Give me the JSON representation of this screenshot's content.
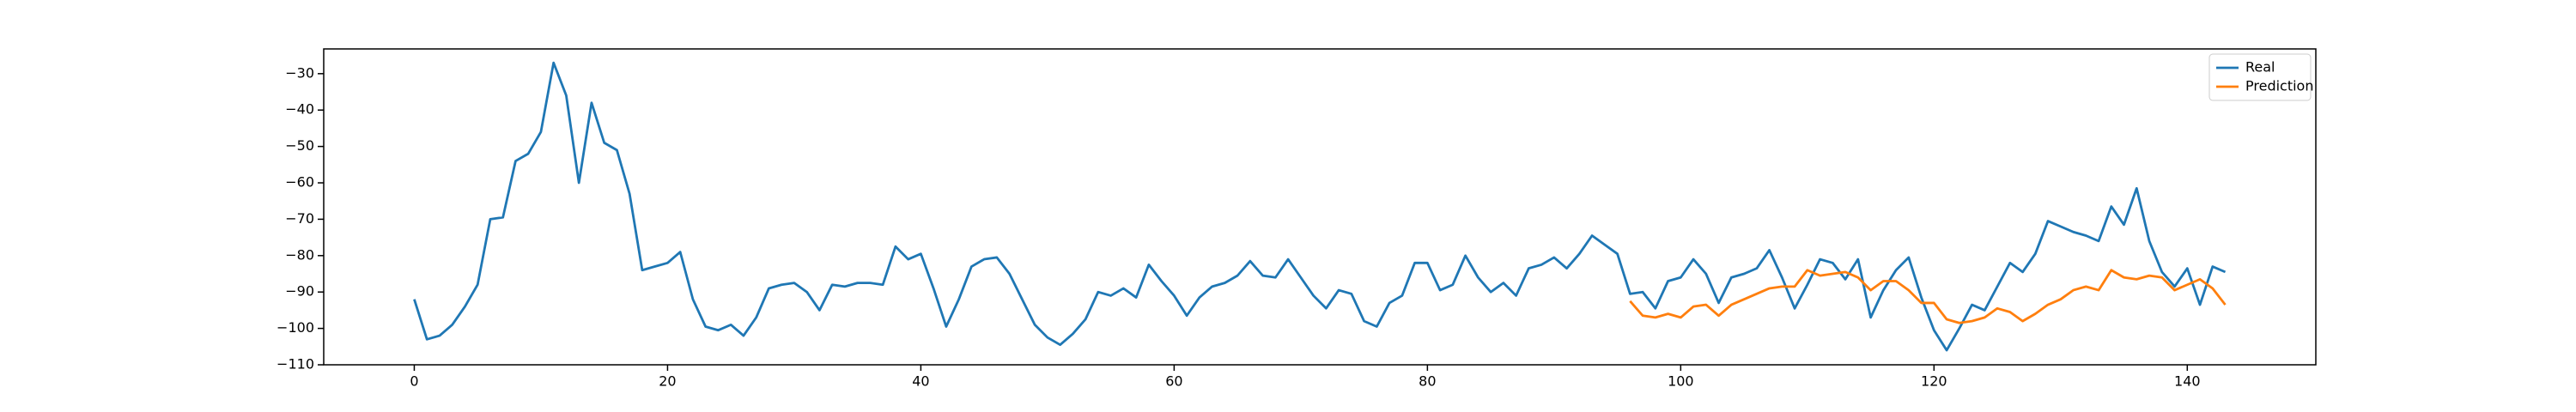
{
  "chart_data": {
    "type": "line",
    "x": [
      0,
      1,
      2,
      3,
      4,
      5,
      6,
      7,
      8,
      9,
      10,
      11,
      12,
      13,
      14,
      15,
      16,
      17,
      18,
      19,
      20,
      21,
      22,
      23,
      24,
      25,
      26,
      27,
      28,
      29,
      30,
      31,
      32,
      33,
      34,
      35,
      36,
      37,
      38,
      39,
      40,
      41,
      42,
      43,
      44,
      45,
      46,
      47,
      48,
      49,
      50,
      51,
      52,
      53,
      54,
      55,
      56,
      57,
      58,
      59,
      60,
      61,
      62,
      63,
      64,
      65,
      66,
      67,
      68,
      69,
      70,
      71,
      72,
      73,
      74,
      75,
      76,
      77,
      78,
      79,
      80,
      81,
      82,
      83,
      84,
      85,
      86,
      87,
      88,
      89,
      90,
      91,
      92,
      93,
      94,
      95,
      96,
      97,
      98,
      99,
      100,
      101,
      102,
      103,
      104,
      105,
      106,
      107,
      108,
      109,
      110,
      111,
      112,
      113,
      114,
      115,
      116,
      117,
      118,
      119,
      120,
      121,
      122,
      123,
      124,
      125,
      126,
      127,
      128,
      129,
      130,
      131,
      132,
      133,
      134,
      135,
      136,
      137,
      138,
      139,
      140,
      141,
      142,
      143
    ],
    "series": [
      {
        "name": "Real",
        "color": "#1f77b4",
        "values": [
          -92,
          -103,
          -102,
          -99,
          -94,
          -88,
          -70,
          -69.5,
          -54,
          -52,
          -46,
          -27,
          -36,
          -60,
          -38,
          -49,
          -51,
          -63,
          -84,
          -83,
          -82,
          -79,
          -92,
          -99.5,
          -100.5,
          -99,
          -102,
          -97,
          -89,
          -88,
          -87.5,
          -90,
          -95,
          -88,
          -88.5,
          -87.5,
          -87.5,
          -88,
          -77.5,
          -81,
          -79.5,
          -89,
          -99.5,
          -92,
          -83,
          -81,
          -80.5,
          -85,
          -92,
          -99,
          -102.5,
          -104.5,
          -101.5,
          -97.5,
          -90,
          -91,
          -89,
          -91.5,
          -82.5,
          -87,
          -91,
          -96.5,
          -91.5,
          -88.5,
          -87.5,
          -85.5,
          -81.5,
          -85.5,
          -86,
          -81,
          -86,
          -91,
          -94.5,
          -89.5,
          -90.5,
          -98,
          -99.5,
          -93,
          -91,
          -82,
          -82,
          -89.5,
          -88,
          -80,
          -86,
          -90,
          -87.5,
          -91,
          -83.5,
          -82.5,
          -80.5,
          -83.5,
          -79.5,
          -74.5,
          -77,
          -79.5,
          -90.5,
          -90,
          -94.5,
          -87,
          -86,
          -81,
          -85,
          -93,
          -86,
          -85,
          -83.5,
          -78.5,
          -86,
          -94.5,
          -88,
          -81,
          -82,
          -86.5,
          -81,
          -97,
          -89.5,
          -84,
          -80.5,
          -91.5,
          -100.5,
          -106,
          -100,
          -93.5,
          -95,
          -88.5,
          -82,
          -84.5,
          -79.5,
          -70.5,
          -72,
          -73.5,
          -74.5,
          -76,
          -66.5,
          -71.5,
          -61.5,
          -76,
          -84.5,
          -88.5,
          -83.5,
          -93.5,
          -83,
          -84.5
        ]
      },
      {
        "name": "Prediction",
        "color": "#ff7f0e",
        "values": [
          null,
          null,
          null,
          null,
          null,
          null,
          null,
          null,
          null,
          null,
          null,
          null,
          null,
          null,
          null,
          null,
          null,
          null,
          null,
          null,
          null,
          null,
          null,
          null,
          null,
          null,
          null,
          null,
          null,
          null,
          null,
          null,
          null,
          null,
          null,
          null,
          null,
          null,
          null,
          null,
          null,
          null,
          null,
          null,
          null,
          null,
          null,
          null,
          null,
          null,
          null,
          null,
          null,
          null,
          null,
          null,
          null,
          null,
          null,
          null,
          null,
          null,
          null,
          null,
          null,
          null,
          null,
          null,
          null,
          null,
          null,
          null,
          null,
          null,
          null,
          null,
          null,
          null,
          null,
          null,
          null,
          null,
          null,
          null,
          null,
          null,
          null,
          null,
          null,
          null,
          null,
          null,
          null,
          null,
          null,
          null,
          -92.5,
          -96.5,
          -97,
          -96,
          -97,
          -94,
          -93.5,
          -96.5,
          -93.5,
          -92,
          -90.5,
          -89,
          -88.5,
          -88.5,
          -84,
          -85.5,
          -85,
          -84.5,
          -86,
          -89.5,
          -87,
          -87,
          -89.5,
          -93,
          -93,
          -97.5,
          -98.5,
          -98,
          -97,
          -94.5,
          -95.5,
          -98,
          -96,
          -93.5,
          -92,
          -89.5,
          -88.5,
          -89.5,
          -84,
          -86,
          -86.5,
          -85.5,
          -86,
          -89.5,
          -88,
          -86.5,
          -89,
          -93.5
        ]
      }
    ],
    "xlim": [
      -7.15,
      150.15
    ],
    "ylim": [
      -110,
      -23.2
    ],
    "xticks": [
      0,
      20,
      40,
      60,
      80,
      100,
      120,
      140
    ],
    "yticks": [
      {
        "value": -110,
        "label": "−110"
      },
      {
        "value": -100,
        "label": "−100"
      },
      {
        "value": -90,
        "label": "−90"
      },
      {
        "value": -80,
        "label": "−80"
      },
      {
        "value": -70,
        "label": "−70"
      },
      {
        "value": -60,
        "label": "−60"
      },
      {
        "value": -50,
        "label": "−50"
      },
      {
        "value": -40,
        "label": "−40"
      },
      {
        "value": -30,
        "label": "−30"
      }
    ],
    "grid": false,
    "legend": "upper right"
  }
}
